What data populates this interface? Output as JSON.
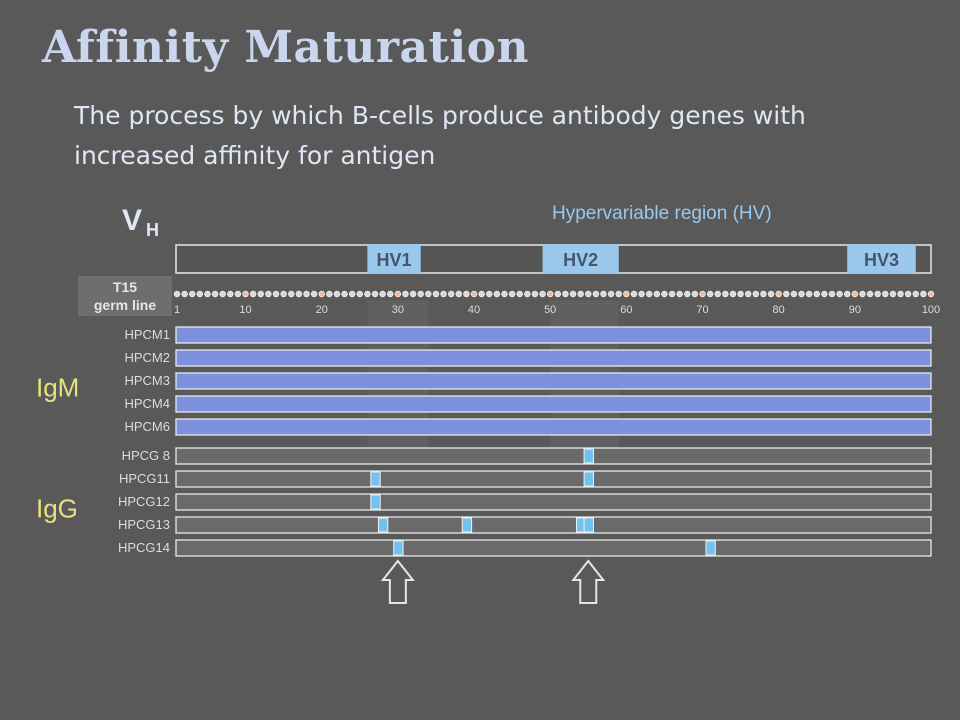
{
  "slide": {
    "title": "Affinity Maturation",
    "subtitle": "The process by which B-cells produce antibody genes with increased affinity for antigen"
  },
  "diagram": {
    "vh_label": "V",
    "vh_subscript": "H",
    "hv_caption": "Hypervariable region (HV)",
    "hv_regions": [
      {
        "label": "HV1",
        "start": 26,
        "end": 33
      },
      {
        "label": "HV2",
        "start": 49,
        "end": 59
      },
      {
        "label": "HV3",
        "start": 89,
        "end": 98
      }
    ],
    "germline_label": [
      "T15",
      "germ line"
    ],
    "residue_count": 100,
    "ticks": [
      1,
      10,
      20,
      30,
      40,
      50,
      60,
      70,
      80,
      90,
      100
    ],
    "groups": [
      {
        "label": "IgM",
        "rows": [
          "HPCM1",
          "HPCM2",
          "HPCM3",
          "HPCM4",
          "HPCM6"
        ]
      },
      {
        "label": "IgG",
        "rows": [
          "HPCG 8",
          "HPCG11",
          "HPCG12",
          "HPCG13",
          "HPCG14"
        ]
      }
    ],
    "mutations": {
      "HPCG 8": [
        55
      ],
      "HPCG11": [
        27,
        55
      ],
      "HPCG12": [
        27
      ],
      "HPCG13": [
        28,
        39,
        54,
        55
      ],
      "HPCG14": [
        30,
        71
      ]
    },
    "arrow_positions": [
      30,
      55
    ],
    "colors": {
      "background": "#595959",
      "title": "#c9d6ee",
      "text": "#dfe6f4",
      "igm_bar": "#7d90de",
      "igg_bar": "#6a6a6a",
      "hv_box": "#9ac8ec",
      "hv_text": "#44566e",
      "highlight": "#72c2ef"
    }
  }
}
